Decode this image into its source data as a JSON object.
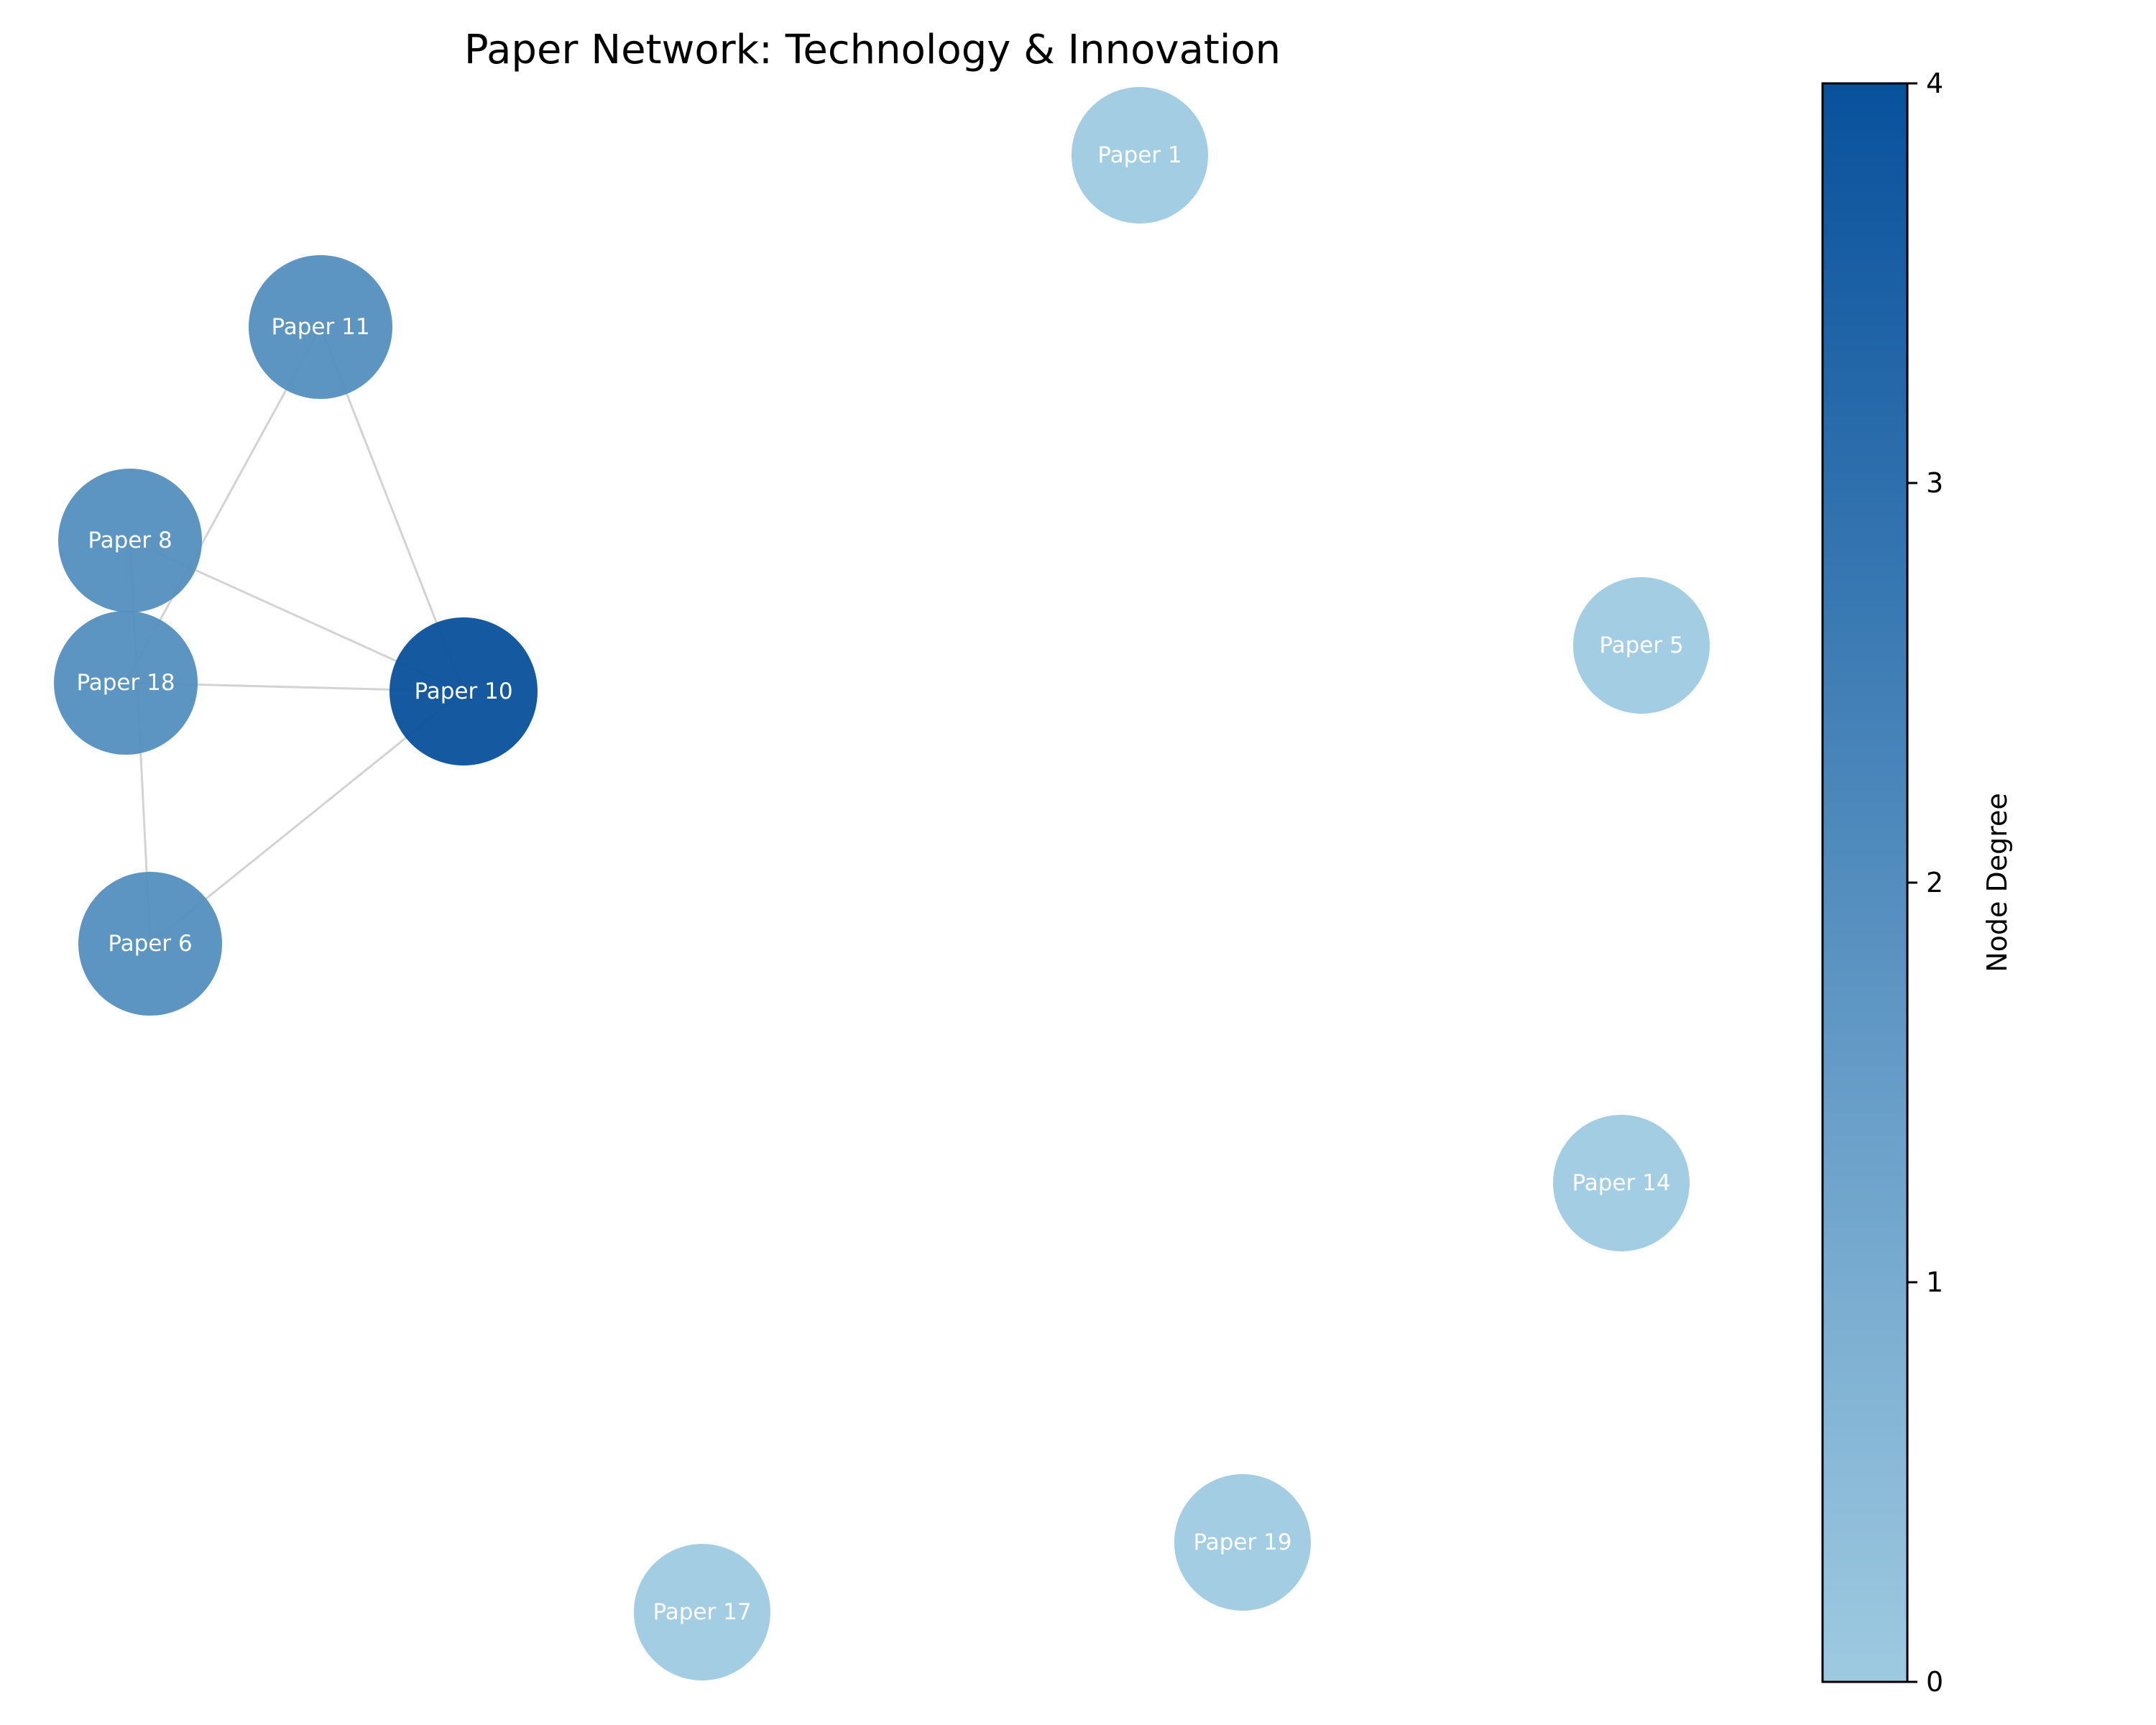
{
  "title": "Paper Network: Technology & Innovation",
  "colorbar": {
    "label": "Node Degree",
    "min": 0,
    "max": 4,
    "ticks": [
      "0",
      "1",
      "2",
      "3",
      "4"
    ],
    "color_low": "#9ecae1",
    "color_high": "#08519c"
  },
  "edge_color": "#d3d3d3",
  "nodes": [
    {
      "id": "p1",
      "label": "Paper 1",
      "degree": 0
    },
    {
      "id": "p11",
      "label": "Paper 11",
      "degree": 2
    },
    {
      "id": "p8",
      "label": "Paper 8",
      "degree": 2
    },
    {
      "id": "p18",
      "label": "Paper 18",
      "degree": 2
    },
    {
      "id": "p10",
      "label": "Paper 10",
      "degree": 4
    },
    {
      "id": "p6",
      "label": "Paper 6",
      "degree": 2
    },
    {
      "id": "p5",
      "label": "Paper 5",
      "degree": 0
    },
    {
      "id": "p14",
      "label": "Paper 14",
      "degree": 0
    },
    {
      "id": "p19",
      "label": "Paper 19",
      "degree": 0
    },
    {
      "id": "p17",
      "label": "Paper 17",
      "degree": 0
    }
  ],
  "edges": [
    [
      "p11",
      "p18"
    ],
    [
      "p11",
      "p10"
    ],
    [
      "p8",
      "p10"
    ],
    [
      "p8",
      "p6"
    ],
    [
      "p18",
      "p10"
    ],
    [
      "p10",
      "p6"
    ]
  ]
}
